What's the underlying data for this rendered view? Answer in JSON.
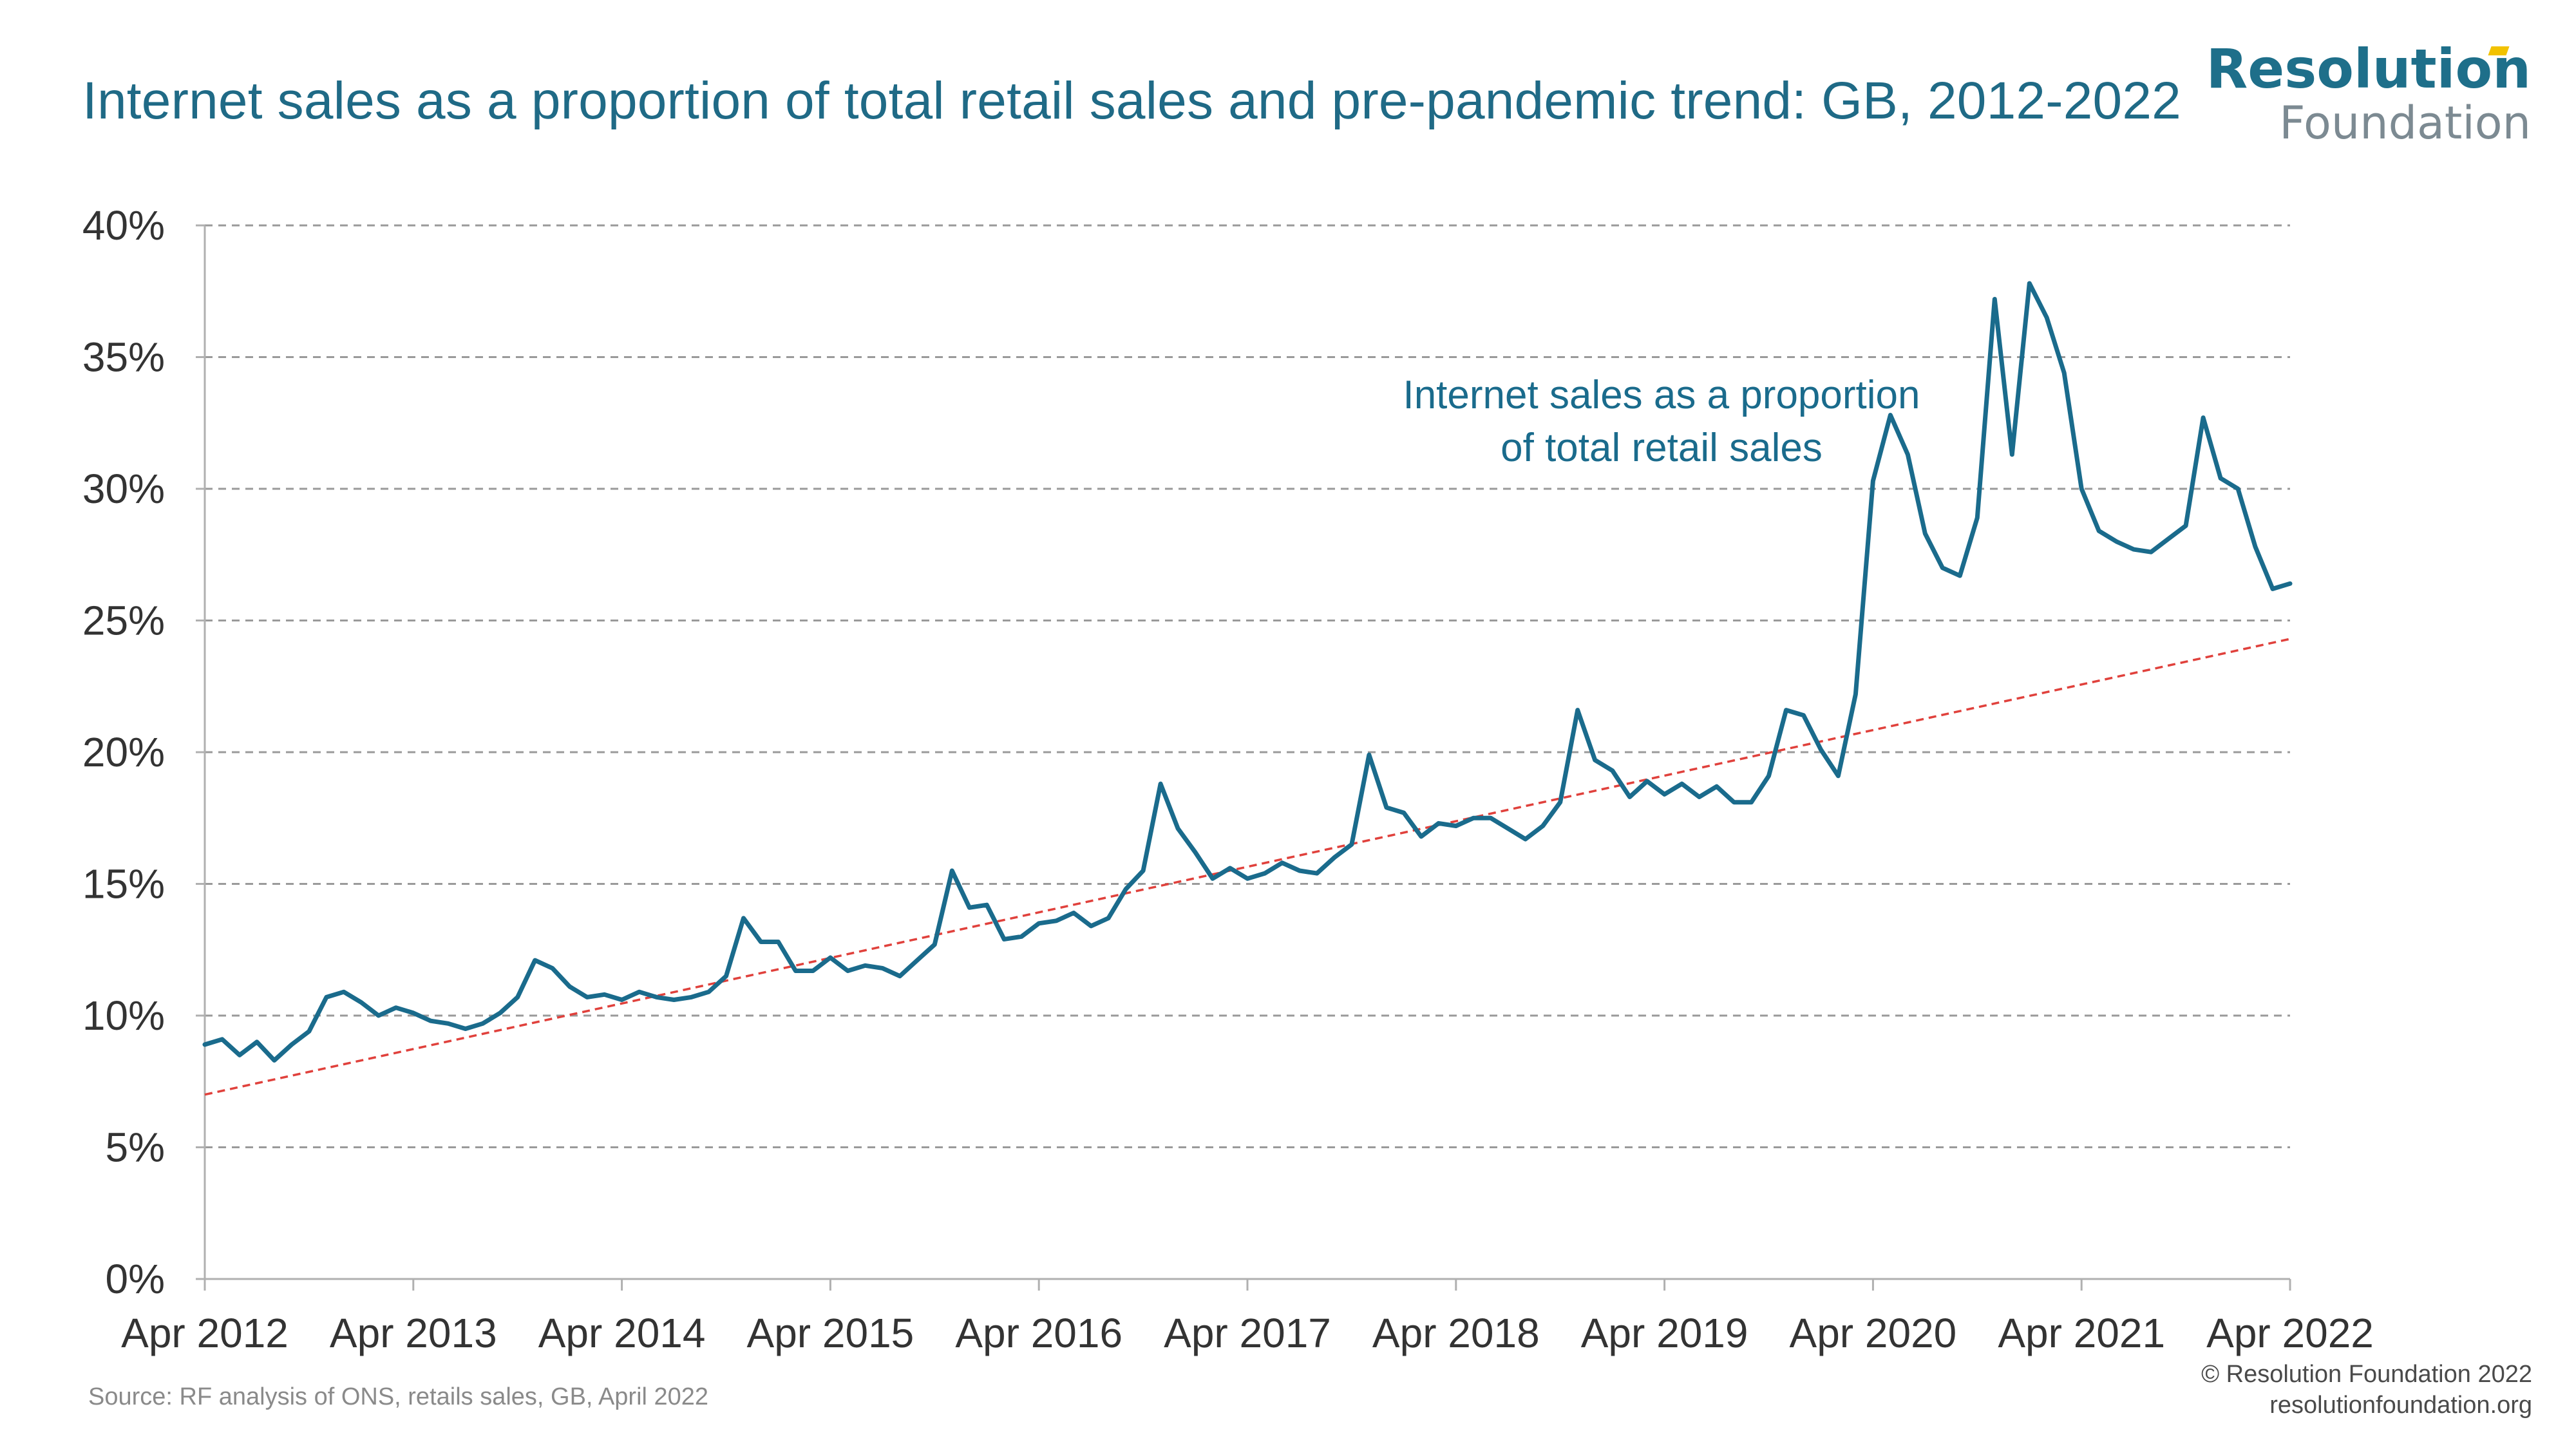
{
  "title": "Internet sales as a proportion of total retail sales and pre-pandemic trend: GB, 2012-2022",
  "logo": {
    "line1": "Resolution",
    "line2": "Foundation"
  },
  "source": "Source: RF analysis of ONS, retails sales, GB, April 2022",
  "credit": {
    "line1": "© Resolution Foundation 2022",
    "line2": "resolutionfoundation.org"
  },
  "colors": {
    "series": "#1a6b8c",
    "trend": "#e0413c",
    "grid": "#9a9a9a",
    "title": "#1f6a86",
    "axis_text": "#333333"
  },
  "chart_data": {
    "type": "line",
    "title": "Internet sales as a proportion of total retail sales and pre-pandemic trend: GB, 2012-2022",
    "x_start": "Apr 2012",
    "x_end": "Apr 2022",
    "x_ticks": [
      "Apr 2012",
      "Apr 2013",
      "Apr 2014",
      "Apr 2015",
      "Apr 2016",
      "Apr 2017",
      "Apr 2018",
      "Apr 2019",
      "Apr 2020",
      "Apr 2021",
      "Apr 2022"
    ],
    "y_ticks": [
      "0%",
      "5%",
      "10%",
      "15%",
      "20%",
      "25%",
      "30%",
      "35%",
      "40%"
    ],
    "ylim": [
      0,
      40
    ],
    "grid": true,
    "series": [
      {
        "name": "Internet sales as a proportion of total retail sales",
        "style": "solid",
        "values": [
          8.9,
          9.1,
          8.5,
          9.0,
          8.3,
          8.9,
          9.4,
          10.7,
          10.9,
          10.5,
          10.0,
          10.3,
          10.1,
          9.8,
          9.7,
          9.5,
          9.7,
          10.1,
          10.7,
          12.1,
          11.8,
          11.1,
          10.7,
          10.8,
          10.6,
          10.9,
          10.7,
          10.6,
          10.7,
          10.9,
          11.5,
          13.7,
          12.8,
          12.8,
          11.7,
          11.7,
          12.2,
          11.7,
          11.9,
          11.8,
          11.5,
          12.1,
          12.7,
          15.5,
          14.1,
          14.2,
          12.9,
          13.0,
          13.5,
          13.6,
          13.9,
          13.4,
          13.7,
          14.8,
          15.5,
          18.8,
          17.1,
          16.2,
          15.2,
          15.6,
          15.2,
          15.4,
          15.8,
          15.5,
          15.4,
          16.0,
          16.5,
          19.9,
          17.9,
          17.7,
          16.8,
          17.3,
          17.2,
          17.5,
          17.5,
          17.1,
          16.7,
          17.2,
          18.1,
          21.6,
          19.7,
          19.3,
          18.3,
          18.9,
          18.4,
          18.8,
          18.3,
          18.7,
          18.1,
          18.1,
          19.1,
          21.6,
          21.4,
          20.1,
          19.1,
          22.2,
          30.3,
          32.8,
          31.3,
          28.3,
          27.0,
          26.7,
          28.9,
          37.2,
          31.3,
          37.8,
          36.5,
          34.4,
          30.0,
          28.4,
          28.0,
          27.7,
          27.6,
          28.1,
          28.6,
          32.7,
          30.4,
          30.0,
          27.8,
          26.2,
          26.4
        ]
      },
      {
        "name": "Pre-pandemic trend",
        "style": "dashed",
        "values_start": 7.0,
        "values_end": 24.3
      }
    ],
    "annotation": {
      "line1": "Internet sales as a proportion",
      "line2": "of total retail sales"
    }
  }
}
